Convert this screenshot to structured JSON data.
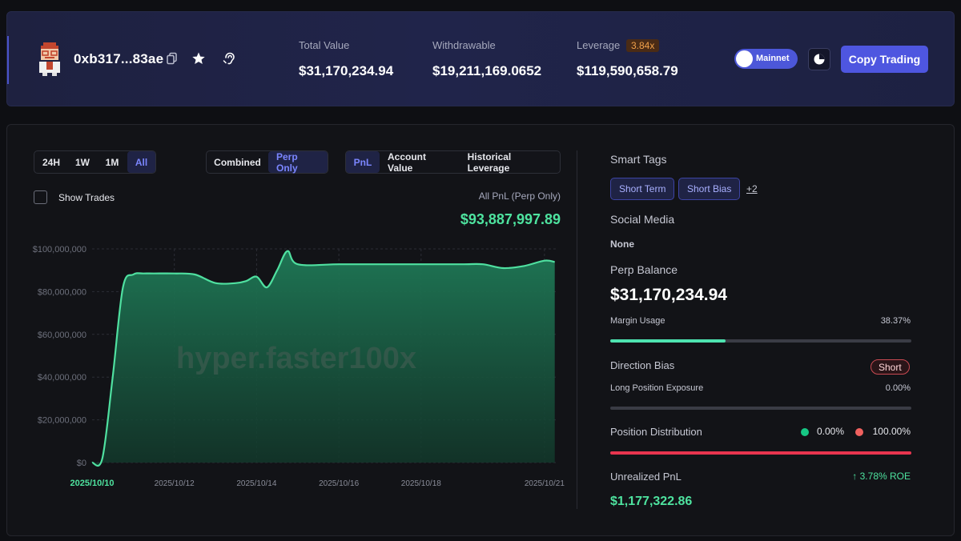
{
  "header": {
    "address": "0xb317...83ae",
    "stats": [
      {
        "label": "Total Value",
        "value": "$31,170,234.94"
      },
      {
        "label": "Withdrawable",
        "value": "$19,211,169.0652"
      },
      {
        "label": "Leverage",
        "value": "$119,590,658.79",
        "badge": "3.84x"
      }
    ],
    "network_toggle": "Mainnet",
    "copy_button": "Copy Trading"
  },
  "controls": {
    "time_ranges": [
      "24H",
      "1W",
      "1M",
      "All"
    ],
    "time_active": "All",
    "modes": [
      "Combined",
      "Perp Only"
    ],
    "mode_active": "Perp Only",
    "metrics": [
      "PnL",
      "Account Value",
      "Historical Leverage"
    ],
    "metric_active": "PnL",
    "show_trades": "Show Trades"
  },
  "pnl_summary": {
    "label": "All PnL (Perp Only)",
    "value": "$93,887,997.89"
  },
  "chart_data": {
    "type": "area",
    "watermark": "hyper.faster100x",
    "x_tick_labels": [
      "2025/10/10",
      "2025/10/12",
      "2025/10/14",
      "2025/10/16",
      "2025/10/18",
      "2025/10/21"
    ],
    "y_tick_labels": [
      "$0",
      "$20,000,000",
      "$40,000,000",
      "$60,000,000",
      "$80,000,000",
      "$100,000,000"
    ],
    "ylim": [
      0,
      100000000
    ],
    "grid": true,
    "series": [
      {
        "x": [
          "2025/10/10 00:00",
          "2025/10/10 06:00",
          "2025/10/10 12:00",
          "2025/10/10 18:00",
          "2025/10/11 00:00",
          "2025/10/11 06:00",
          "2025/10/11 12:00",
          "2025/10/12 00:00",
          "2025/10/12 12:00",
          "2025/10/13 00:00",
          "2025/10/13 12:00",
          "2025/10/13 18:00",
          "2025/10/14 00:00",
          "2025/10/14 06:00",
          "2025/10/14 12:00",
          "2025/10/14 18:00",
          "2025/10/15 00:00",
          "2025/10/16 00:00",
          "2025/10/17 00:00",
          "2025/10/18 00:00",
          "2025/10/19 00:00",
          "2025/10/19 12:00",
          "2025/10/20 00:00",
          "2025/10/20 12:00",
          "2025/10/21 00:00",
          "2025/10/21 06:00"
        ],
        "y": [
          0,
          2000000,
          40000000,
          82000000,
          88000000,
          88500000,
          88500000,
          88500000,
          88000000,
          84000000,
          84000000,
          85000000,
          87000000,
          82000000,
          90000000,
          99000000,
          92800000,
          92800000,
          92800000,
          92800000,
          92800000,
          92800000,
          91000000,
          92000000,
          94500000,
          93900000
        ]
      }
    ]
  },
  "sidebar": {
    "smart_tags_label": "Smart Tags",
    "tags": [
      "Short Term",
      "Short Bias"
    ],
    "more_tags": "+2",
    "social_label": "Social Media",
    "social_value": "None",
    "perp_balance_label": "Perp Balance",
    "perp_balance_value": "$31,170,234.94",
    "margin_usage_label": "Margin Usage",
    "margin_usage_value": "38.37%",
    "margin_usage_fraction": 0.3837,
    "direction_bias_label": "Direction Bias",
    "direction_bias_value": "Short",
    "long_exposure_label": "Long Position Exposure",
    "long_exposure_value": "0.00%",
    "long_exposure_fraction": 0,
    "position_distribution_label": "Position Distribution",
    "long_pct": "0.00%",
    "short_pct": "100.00%",
    "short_fraction": 1.0,
    "unrealized_pnl_label": "Unrealized PnL",
    "roe_value": "↑ 3.78% ROE",
    "unrealized_pnl_value": "$1,177,322.86"
  },
  "colors": {
    "accent": "#4e56e0",
    "positive": "#4ee39f",
    "negative": "#e8344e",
    "line": "#4fe0a0"
  }
}
